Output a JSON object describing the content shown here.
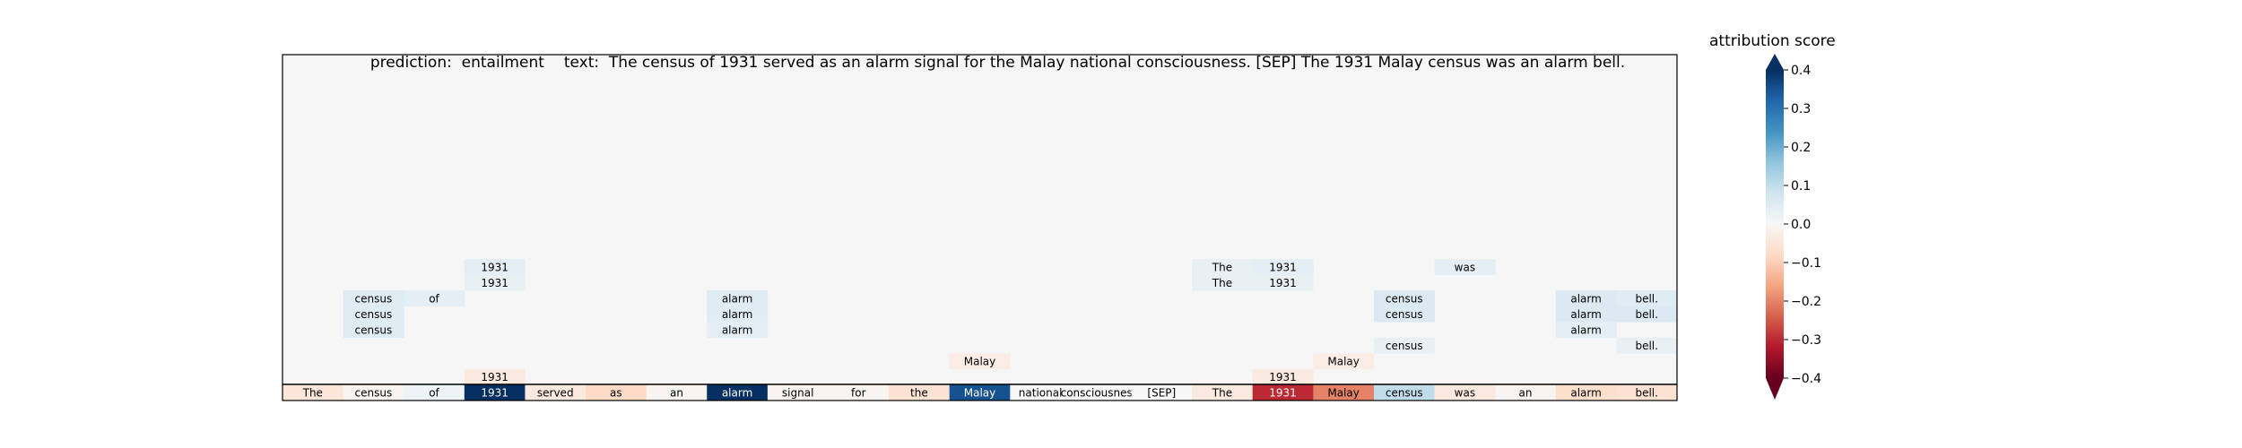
{
  "header": {
    "prediction_label": "prediction:",
    "prediction_value": "entailment",
    "text_label": "text:",
    "text_value": "The census of 1931 served as an alarm signal for the Malay national consciousness. [SEP] The 1931 Malay census was an alarm bell."
  },
  "colorbar": {
    "title": "attribution score",
    "ticks": [
      "0.4",
      "0.3",
      "0.2",
      "0.1",
      "0.0",
      "−0.1",
      "−0.2",
      "−0.3",
      "−0.4"
    ],
    "tick_values": [
      0.4,
      0.3,
      0.2,
      0.1,
      0.0,
      -0.1,
      -0.2,
      -0.3,
      -0.4
    ],
    "range": [
      -0.4,
      0.4
    ],
    "colormap": "RdBu"
  },
  "chart_data": {
    "type": "heatmap",
    "rows_total": 22,
    "tokens": [
      "The",
      "census",
      "of",
      "1931",
      "served",
      "as",
      "an",
      "alarm",
      "signal",
      "for",
      "the",
      "Malay",
      "national",
      "consciousness.",
      "[SEP]",
      "The",
      "1931",
      "Malay",
      "census",
      "was",
      "an",
      "alarm",
      "bell."
    ],
    "token_scores": [
      -0.05,
      -0.01,
      0.02,
      0.4,
      -0.04,
      -0.08,
      -0.01,
      0.4,
      -0.01,
      -0.01,
      -0.06,
      0.35,
      0.0,
      0.0,
      0.0,
      -0.04,
      -0.3,
      -0.2,
      0.1,
      -0.04,
      -0.01,
      -0.07,
      -0.06
    ],
    "cells": [
      {
        "row": 13,
        "col": 3,
        "text": "1931",
        "score": 0.04
      },
      {
        "row": 13,
        "col": 15,
        "text": "The",
        "score": 0.03
      },
      {
        "row": 13,
        "col": 16,
        "text": "1931",
        "score": 0.04
      },
      {
        "row": 13,
        "col": 19,
        "text": "was",
        "score": 0.04
      },
      {
        "row": 14,
        "col": 3,
        "text": "1931",
        "score": 0.03
      },
      {
        "row": 14,
        "col": 15,
        "text": "The",
        "score": 0.03
      },
      {
        "row": 14,
        "col": 16,
        "text": "1931",
        "score": 0.03
      },
      {
        "row": 15,
        "col": 1,
        "text": "census",
        "score": 0.05
      },
      {
        "row": 15,
        "col": 2,
        "text": "of",
        "score": 0.04
      },
      {
        "row": 15,
        "col": 7,
        "text": "alarm",
        "score": 0.05
      },
      {
        "row": 15,
        "col": 18,
        "text": "census",
        "score": 0.06
      },
      {
        "row": 15,
        "col": 21,
        "text": "alarm",
        "score": 0.06
      },
      {
        "row": 15,
        "col": 22,
        "text": "bell.",
        "score": 0.05
      },
      {
        "row": 16,
        "col": 1,
        "text": "census",
        "score": 0.05
      },
      {
        "row": 16,
        "col": 7,
        "text": "alarm",
        "score": 0.05
      },
      {
        "row": 16,
        "col": 18,
        "text": "census",
        "score": 0.06
      },
      {
        "row": 16,
        "col": 21,
        "text": "alarm",
        "score": 0.06
      },
      {
        "row": 16,
        "col": 22,
        "text": "bell.",
        "score": 0.06
      },
      {
        "row": 17,
        "col": 1,
        "text": "census",
        "score": 0.05
      },
      {
        "row": 17,
        "col": 7,
        "text": "alarm",
        "score": 0.04
      },
      {
        "row": 17,
        "col": 21,
        "text": "alarm",
        "score": 0.04
      },
      {
        "row": 18,
        "col": 18,
        "text": "census",
        "score": 0.03
      },
      {
        "row": 18,
        "col": 22,
        "text": "bell.",
        "score": 0.03
      },
      {
        "row": 19,
        "col": 11,
        "text": "Malay",
        "score": -0.03
      },
      {
        "row": 19,
        "col": 17,
        "text": "Malay",
        "score": -0.03
      },
      {
        "row": 20,
        "col": 3,
        "text": "1931",
        "score": -0.04
      },
      {
        "row": 20,
        "col": 16,
        "text": "1931",
        "score": -0.04
      },
      {
        "row": 21,
        "col": 7,
        "text": "alarm",
        "score": 0.09
      },
      {
        "row": 21,
        "col": 21,
        "text": "alarm",
        "score": 0.08
      }
    ]
  }
}
